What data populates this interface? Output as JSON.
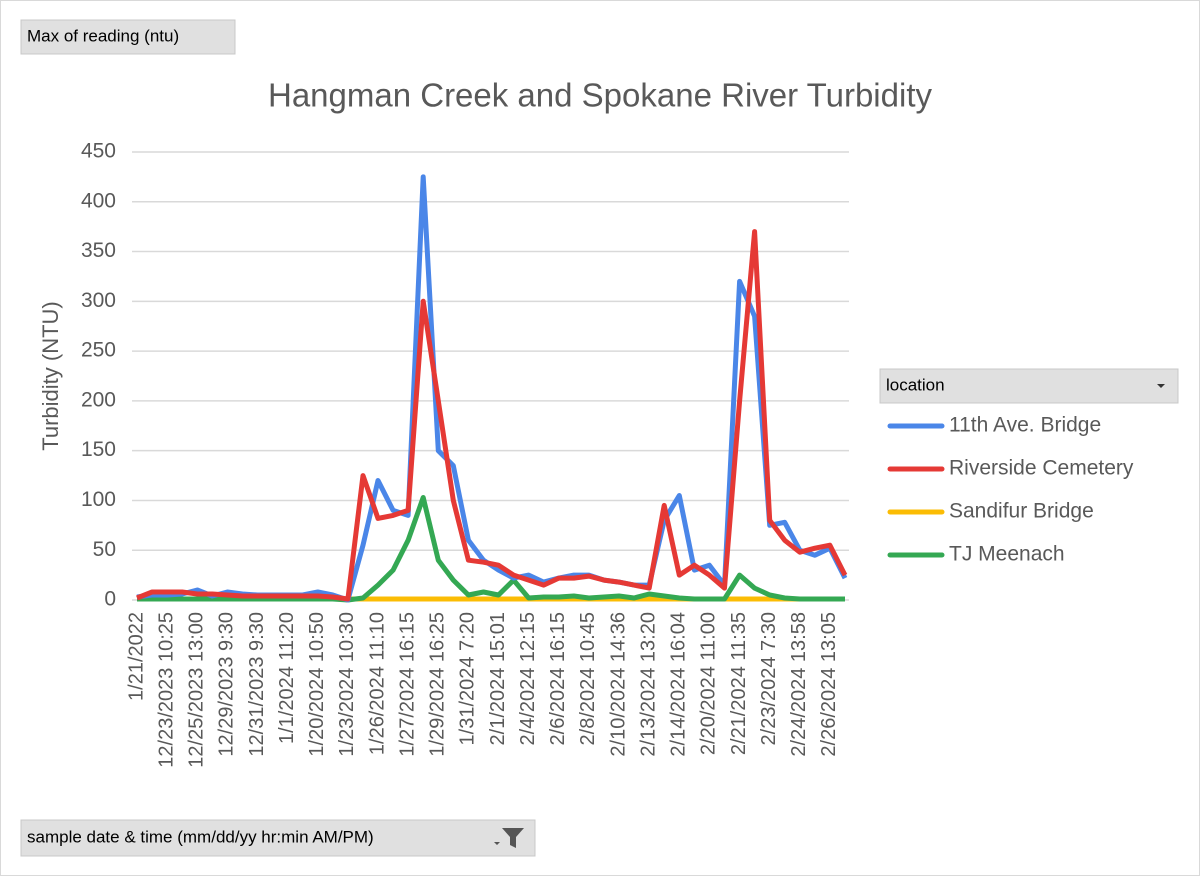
{
  "chart_data": {
    "type": "line",
    "title": "Hangman Creek and Spokane River Turbidity",
    "value_field": "Max of reading (ntu)",
    "legend_title": "location",
    "axis_field": "sample date & time (mm/dd/yy hr:min AM/PM)",
    "ylabel": "Turbidity (NTU)",
    "categories": [
      "1/21/2022",
      null,
      "12/23/2023 10:25",
      null,
      "12/25/2023 13:00",
      null,
      "12/29/2023 9:30",
      null,
      "12/31/2023 9:30",
      null,
      "1/1/2024 11:20",
      null,
      "1/20/2024 10:50",
      null,
      "1/23/2024 10:30",
      null,
      "1/26/2024 11:10",
      null,
      "1/27/2024 16:15",
      null,
      "1/29/2024 16:25",
      null,
      "1/31/2024 7:20",
      null,
      "2/1/2024 15:01",
      null,
      "2/4/2024 12:15",
      null,
      "2/6/2024 16:15",
      null,
      "2/8/2024 10:45",
      null,
      "2/10/2024 14:36",
      null,
      "2/13/2024 13:20",
      null,
      "2/14/2024 16:04",
      null,
      "2/20/2024 11:00",
      null,
      "2/21/2024 11:35",
      null,
      "2/23/2024 7:30",
      null,
      "2/24/2024 13:58",
      null,
      "2/26/2024 13:05",
      null
    ],
    "series": [
      {
        "name": "11th Ave. Bridge",
        "color": "#4a86e8",
        "values": [
          3,
          5,
          5,
          6,
          10,
          4,
          8,
          6,
          5,
          5,
          5,
          5,
          8,
          5,
          0,
          55,
          120,
          90,
          85,
          425,
          150,
          135,
          60,
          40,
          30,
          22,
          25,
          18,
          22,
          25,
          25,
          20,
          18,
          15,
          15,
          80,
          105,
          30,
          35,
          15,
          320,
          285,
          75,
          78,
          50,
          45,
          52,
          22
        ]
      },
      {
        "name": "Riverside Cemetery",
        "color": "#e53935",
        "values": [
          2,
          8,
          8,
          8,
          6,
          6,
          5,
          4,
          4,
          4,
          4,
          4,
          4,
          3,
          1,
          125,
          82,
          85,
          90,
          300,
          200,
          100,
          40,
          38,
          35,
          25,
          20,
          15,
          22,
          22,
          24,
          20,
          18,
          15,
          12,
          95,
          25,
          35,
          25,
          12,
          200,
          370,
          80,
          60,
          48,
          52,
          55,
          25
        ]
      },
      {
        "name": "Sandifur Bridge",
        "color": "#fbbc04",
        "values": [
          1,
          1,
          1,
          1,
          1,
          1,
          1,
          1,
          1,
          1,
          1,
          1,
          1,
          1,
          1,
          1,
          1,
          1,
          1,
          1,
          1,
          1,
          1,
          1,
          1,
          1,
          1,
          1,
          1,
          1,
          1,
          1,
          1,
          1,
          1,
          1,
          1,
          1,
          1,
          1,
          1,
          1,
          1,
          1,
          1,
          1,
          1,
          1
        ]
      },
      {
        "name": "TJ Meenach",
        "color": "#34a853",
        "values": [
          1,
          1,
          1,
          1,
          1,
          1,
          1,
          1,
          1,
          1,
          1,
          1,
          1,
          1,
          0,
          2,
          15,
          30,
          60,
          103,
          40,
          20,
          5,
          8,
          5,
          20,
          2,
          3,
          3,
          4,
          2,
          3,
          4,
          2,
          6,
          4,
          2,
          1,
          1,
          1,
          25,
          12,
          5,
          2,
          1,
          1,
          1,
          1
        ]
      }
    ],
    "ylim": [
      0,
      450
    ],
    "yticks": [
      0,
      50,
      100,
      150,
      200,
      250,
      300,
      350,
      400,
      450
    ],
    "grid": true
  }
}
